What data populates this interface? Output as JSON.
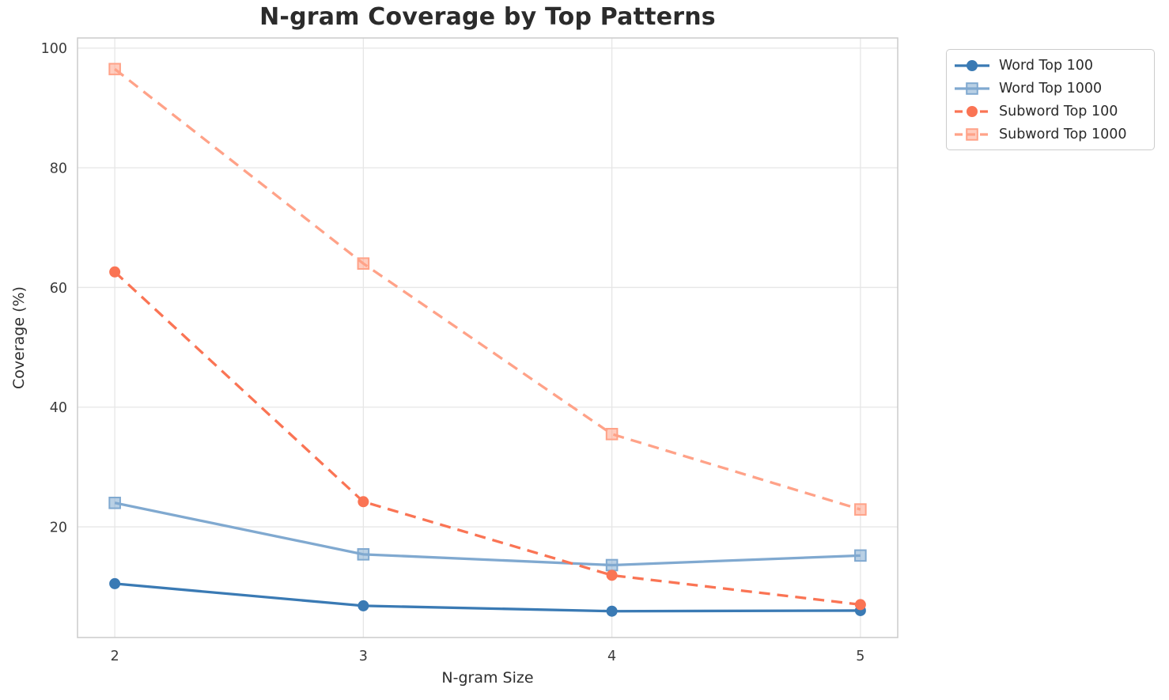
{
  "chart_data": {
    "type": "line",
    "title": "N-gram Coverage by Top Patterns",
    "xlabel": "N-gram Size",
    "ylabel": "Coverage (%)",
    "x": [
      2,
      3,
      4,
      5
    ],
    "xticks": [
      2,
      3,
      4,
      5
    ],
    "yticks": [
      20,
      40,
      60,
      80,
      100
    ],
    "xlim": [
      1.85,
      5.15
    ],
    "ylim": [
      1.5,
      101.7
    ],
    "grid": true,
    "legend_position": "outside-upper-right",
    "series": [
      {
        "name": "Word Top 100",
        "values": [
          10.5,
          6.8,
          5.9,
          6.0
        ],
        "color": "#3a7ab4",
        "marker": "circle",
        "line": "solid"
      },
      {
        "name": "Word Top 1000",
        "values": [
          24.0,
          15.4,
          13.6,
          15.2
        ],
        "color": "#80a9d0",
        "marker": "square",
        "line": "solid"
      },
      {
        "name": "Subword Top 100",
        "values": [
          62.6,
          24.2,
          11.9,
          7.0
        ],
        "color": "#fa7454",
        "marker": "circle",
        "line": "dashed"
      },
      {
        "name": "Subword Top 1000",
        "values": [
          96.5,
          64.0,
          35.5,
          22.9
        ],
        "color": "#ffa288",
        "marker": "square",
        "line": "dashed"
      }
    ],
    "grid_color": "#e6e6e6",
    "spine_color": "#cbcbcb",
    "title_color": "#2b2b2b",
    "tick_color": "#3b3b3b"
  }
}
